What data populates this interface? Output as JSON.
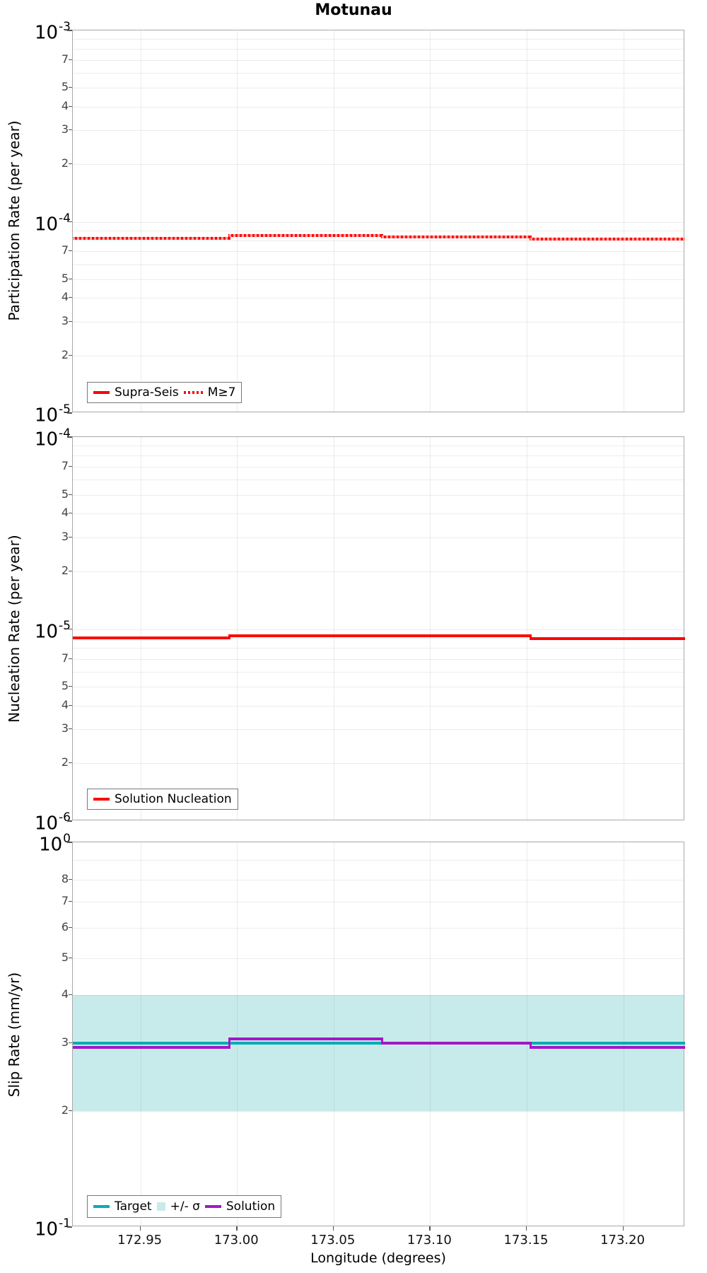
{
  "title": "Motunau",
  "x_axis": {
    "label": "Longitude (degrees)",
    "tick_values": [
      172.95,
      173.0,
      173.05,
      173.1,
      173.15,
      173.2
    ],
    "tick_labels": [
      "172.95",
      "173.00",
      "173.05",
      "173.10",
      "173.15",
      "173.20"
    ],
    "range": [
      172.915,
      173.232
    ]
  },
  "colors": {
    "red": "#ff0000",
    "red_dot": "#ff9b9b",
    "teal": "#00aeb2",
    "purple": "#a516c8",
    "band": "#c7ebeb",
    "grid": "#ebebeb",
    "panel_border": "#a9a9a9",
    "minor_tick_text": "#444444"
  },
  "boundaries_lon": [
    172.915,
    172.996,
    173.075,
    173.152,
    173.232
  ],
  "chart_data": [
    {
      "type": "step-line",
      "name": "participation",
      "ylabel": "Participation Rate (per year)",
      "y_decade_exponents": [
        -3,
        -4,
        -5
      ],
      "y_minor_labels": [
        7,
        5,
        4,
        3,
        2
      ],
      "series": [
        {
          "name": "Supra-Seis",
          "color_key": "red",
          "style": "solid",
          "values": [
            8.2e-05,
            8.45e-05,
            8.3e-05,
            8.1e-05
          ]
        },
        {
          "name": "M≥7",
          "color_key": "red_dot",
          "style": "dotted",
          "values": [
            8.2e-05,
            8.45e-05,
            8.3e-05,
            8.1e-05
          ]
        }
      ],
      "legend": [
        {
          "label": "Supra-Seis",
          "swatch": "line",
          "color_key": "red"
        },
        {
          "label": "M≥7",
          "swatch": "dotted",
          "color_key": "red"
        }
      ]
    },
    {
      "type": "step-line",
      "name": "nucleation",
      "ylabel": "Nucleation Rate (per year)",
      "y_decade_exponents": [
        -4,
        -5,
        -6
      ],
      "y_minor_labels": [
        7,
        5,
        4,
        3,
        2
      ],
      "series": [
        {
          "name": "Solution Nucleation",
          "color_key": "red",
          "style": "solid",
          "values": [
            9e-06,
            9.25e-06,
            9.2e-06,
            8.95e-06
          ]
        }
      ],
      "legend": [
        {
          "label": "Solution Nucleation",
          "swatch": "line",
          "color_key": "red"
        }
      ]
    },
    {
      "type": "step-line",
      "name": "slip-rate",
      "ylabel": "Slip Rate (mm/yr)",
      "y_decade_exponents": [
        0,
        -1
      ],
      "y_minor_labels": [
        8,
        7,
        6,
        5,
        4,
        3,
        2
      ],
      "band": {
        "name": "+/- σ",
        "low": 0.2,
        "high": 0.4,
        "color_key": "band"
      },
      "series": [
        {
          "name": "Target",
          "color_key": "teal",
          "style": "solid",
          "values": [
            0.3,
            0.3,
            0.3,
            0.3
          ]
        },
        {
          "name": "Solution",
          "color_key": "purple",
          "style": "solid",
          "values": [
            0.293,
            0.308,
            0.301,
            0.293
          ]
        }
      ],
      "legend": [
        {
          "label": "Target",
          "swatch": "line",
          "color_key": "teal"
        },
        {
          "label": "+/- σ",
          "swatch": "square",
          "color_key": "band"
        },
        {
          "label": "Solution",
          "swatch": "line",
          "color_key": "purple"
        }
      ]
    }
  ]
}
